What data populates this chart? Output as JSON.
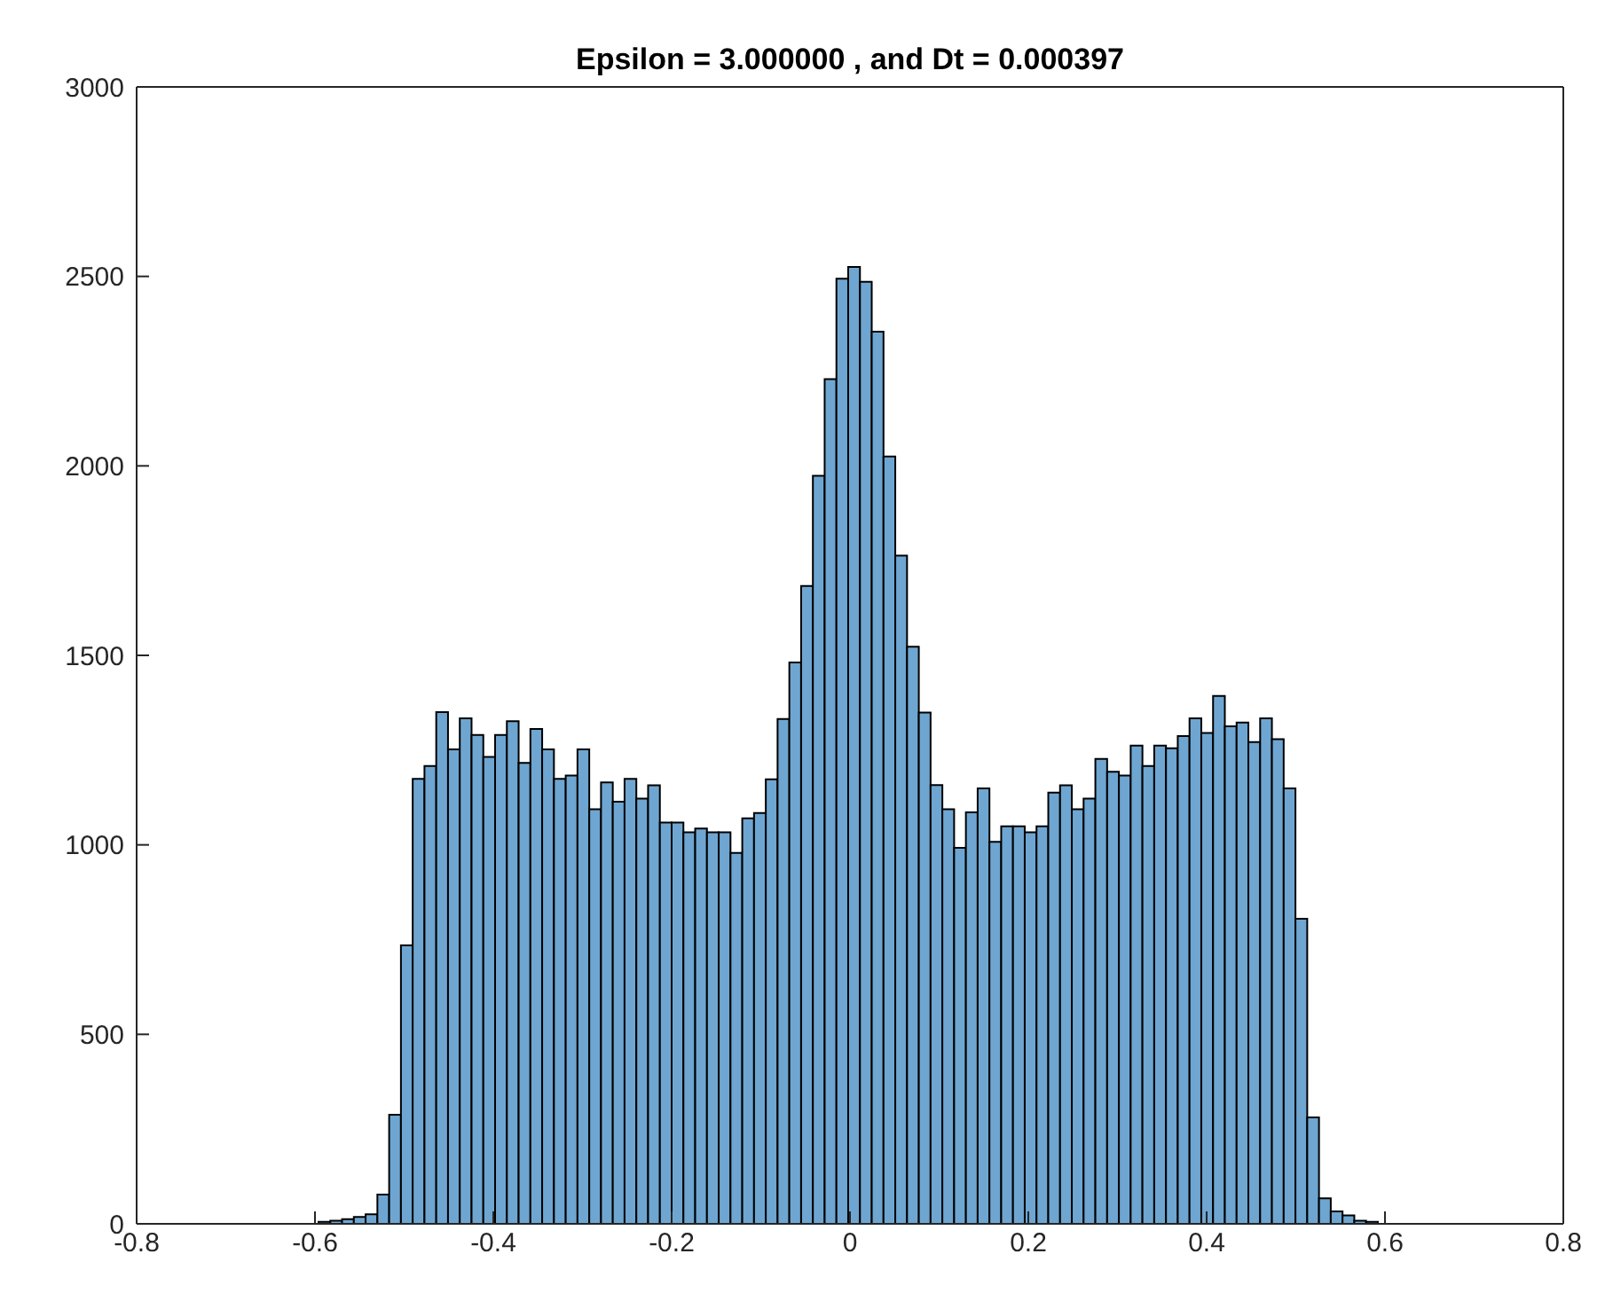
{
  "chart_data": {
    "type": "histogram",
    "title": "Epsilon = 3.000000 , and Dt = 0.000397",
    "bins": [
      -0.596,
      -0.5828,
      -0.5696,
      -0.5564,
      -0.5432,
      -0.53,
      -0.5168,
      -0.5036,
      -0.4904,
      -0.4772,
      -0.464,
      -0.4508,
      -0.4376,
      -0.4244,
      -0.4112,
      -0.398,
      -0.3848,
      -0.3716,
      -0.3584,
      -0.3452,
      -0.332,
      -0.3188,
      -0.3056,
      -0.2924,
      -0.2792,
      -0.266,
      -0.2528,
      -0.2396,
      -0.2264,
      -0.2132,
      -0.2,
      -0.1868,
      -0.1736,
      -0.1604,
      -0.1472,
      -0.134,
      -0.1208,
      -0.1076,
      -0.0944,
      -0.0812,
      -0.068,
      -0.0548,
      -0.0416,
      -0.0284,
      -0.0152,
      -0.002,
      0.0112,
      0.0244,
      0.0376,
      0.0508,
      0.064,
      0.0772,
      0.0904,
      0.1036,
      0.1168,
      0.13,
      0.1432,
      0.1564,
      0.1696,
      0.1828,
      0.196,
      0.2092,
      0.2224,
      0.2356,
      0.2488,
      0.262,
      0.2752,
      0.2884,
      0.3016,
      0.3148,
      0.328,
      0.3412,
      0.3544,
      0.3676,
      0.3808,
      0.394,
      0.4072,
      0.4204,
      0.4336,
      0.4468,
      0.46,
      0.4732,
      0.4864,
      0.4996,
      0.5128,
      0.526,
      0.5392,
      0.5524,
      0.5656,
      0.5788,
      0.592
    ],
    "values": [
      5,
      8,
      12,
      18,
      25,
      77,
      288,
      735,
      1174,
      1208,
      1350,
      1252,
      1334,
      1290,
      1232,
      1290,
      1326,
      1216,
      1306,
      1252,
      1174,
      1183,
      1252,
      1094,
      1165,
      1114,
      1174,
      1122,
      1157,
      1059,
      1059,
      1033,
      1043,
      1033,
      1033,
      979,
      1070,
      1084,
      1173,
      1332,
      1481,
      1683,
      1974,
      2229,
      2494,
      2525,
      2486,
      2354,
      2025,
      1763,
      1523,
      1349,
      1158,
      1094,
      992,
      1086,
      1149,
      1008,
      1049,
      1049,
      1033,
      1049,
      1138,
      1157,
      1094,
      1122,
      1227,
      1193,
      1183,
      1262,
      1208,
      1262,
      1255,
      1287,
      1334,
      1295,
      1393,
      1313,
      1323,
      1271,
      1334,
      1279,
      1149,
      805,
      281,
      67,
      33,
      22,
      8,
      5
    ],
    "color": "#6ea6d1",
    "xlim": [
      -0.8,
      0.8
    ],
    "xticks": [
      -0.8,
      -0.6,
      -0.4,
      -0.2,
      0,
      0.2,
      0.4,
      0.6,
      0.8
    ],
    "ylim": [
      0,
      3000
    ],
    "yticks": [
      0,
      500,
      1000,
      1500,
      2000,
      2500,
      3000
    ]
  }
}
